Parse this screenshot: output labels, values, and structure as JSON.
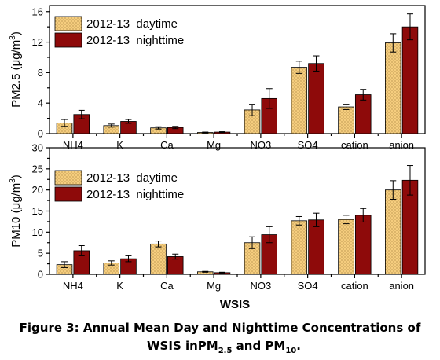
{
  "caption": {
    "line1": "Figure 3: Annual Mean Day and Nighttime Concentrations of",
    "line2_pre": "WSIS inPM",
    "line2_sub1": "2.5",
    "line2_mid": " and PM",
    "line2_sub2": "10",
    "line2_post": "."
  },
  "xlabel": "WSIS",
  "colors": {
    "day": "#F5CD7E",
    "night": "#8E0A0A",
    "dot": "#7a5a20"
  },
  "chart_data": [
    {
      "type": "bar",
      "categories": [
        "NH4",
        "K",
        "Ca",
        "Mg",
        "NO3",
        "SO4",
        "cation",
        "anion"
      ],
      "ylabel_pre": "PM2.5 (",
      "ylabel_unit": "μg/m",
      "ylabel_sup": "3",
      "ylabel_post": ")",
      "ylim": [
        0,
        16.8
      ],
      "yticks": [
        0,
        4,
        8,
        12,
        16
      ],
      "series": [
        {
          "name": "2012-13  daytime",
          "values": [
            1.4,
            1.05,
            0.75,
            0.15,
            3.1,
            8.7,
            3.5,
            11.9
          ],
          "errors": [
            0.45,
            0.2,
            0.15,
            0.05,
            0.75,
            0.8,
            0.35,
            1.2
          ]
        },
        {
          "name": "2012-13  nighttime",
          "values": [
            2.5,
            1.6,
            0.8,
            0.2,
            4.6,
            9.2,
            5.1,
            14.0
          ],
          "errors": [
            0.55,
            0.25,
            0.15,
            0.05,
            1.3,
            1.0,
            0.7,
            1.7
          ]
        }
      ]
    },
    {
      "type": "bar",
      "categories": [
        "NH4",
        "K",
        "Ca",
        "Mg",
        "NO3",
        "SO4",
        "cation",
        "anion"
      ],
      "ylabel_pre": "PM10 (",
      "ylabel_unit": "μg/m",
      "ylabel_sup": "3",
      "ylabel_post": ")",
      "ylim": [
        0,
        30
      ],
      "yticks": [
        0,
        5,
        10,
        15,
        20,
        25,
        30
      ],
      "series": [
        {
          "name": "2012-13  daytime",
          "values": [
            2.3,
            2.7,
            7.2,
            0.6,
            7.5,
            12.7,
            13.0,
            20.0
          ],
          "errors": [
            0.7,
            0.5,
            0.7,
            0.1,
            1.4,
            1.0,
            1.0,
            2.2
          ]
        },
        {
          "name": "2012-13  nighttime",
          "values": [
            5.6,
            3.7,
            4.2,
            0.4,
            9.4,
            12.9,
            14.0,
            22.3
          ],
          "errors": [
            1.2,
            0.7,
            0.6,
            0.1,
            1.9,
            1.6,
            1.6,
            3.5
          ]
        }
      ]
    }
  ]
}
